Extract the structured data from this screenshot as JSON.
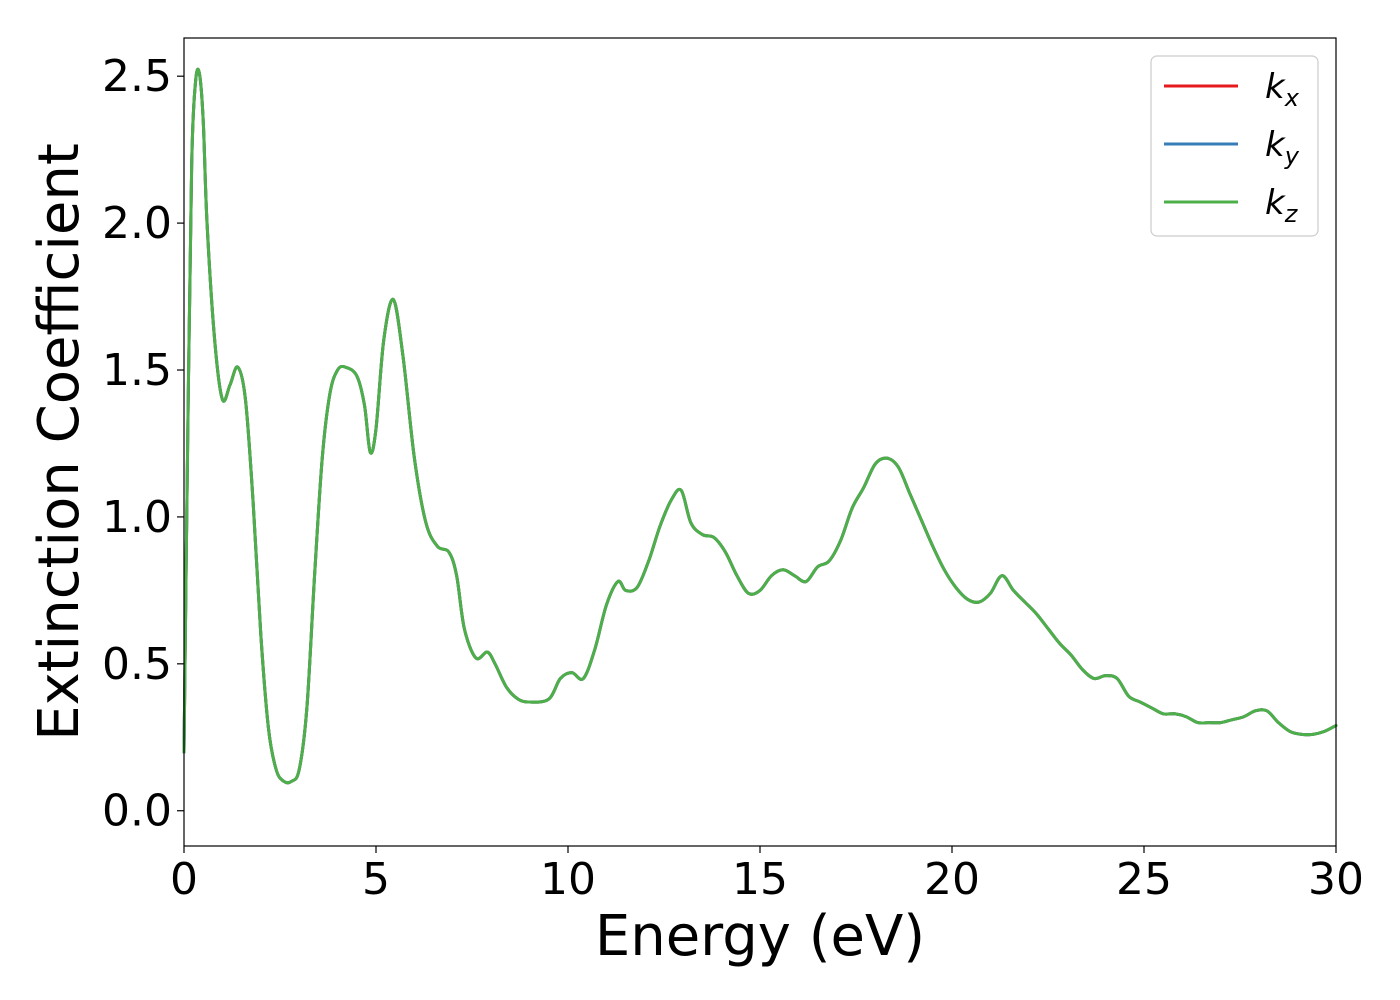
{
  "chart_data": {
    "type": "line",
    "title": "",
    "xlabel": "Energy (eV)",
    "ylabel": "Extinction Coefficient",
    "xlim": [
      0,
      30
    ],
    "ylim": [
      -0.12,
      2.63
    ],
    "xticks": [
      0,
      5,
      10,
      15,
      20,
      25,
      30
    ],
    "xtick_labels": [
      "0",
      "5",
      "10",
      "15",
      "20",
      "25",
      "30"
    ],
    "yticks": [
      0.0,
      0.5,
      1.0,
      1.5,
      2.0,
      2.5
    ],
    "ytick_labels": [
      "0.0",
      "0.5",
      "1.0",
      "1.5",
      "2.0",
      "2.5"
    ],
    "grid": false,
    "legend_position": "top-right",
    "series": [
      {
        "name": "k_x",
        "legend_base": "k",
        "legend_sub": "x",
        "color": "#e41a1c",
        "x": [
          0,
          0.1,
          0.2,
          0.3,
          0.4,
          0.5,
          0.6,
          0.8,
          1.0,
          1.2,
          1.4,
          1.6,
          1.8,
          2.0,
          2.2,
          2.4,
          2.6,
          2.8,
          3.0,
          3.2,
          3.4,
          3.6,
          3.8,
          4.0,
          4.2,
          4.5,
          4.7,
          4.85,
          5.0,
          5.2,
          5.45,
          5.7,
          6.0,
          6.3,
          6.6,
          6.9,
          7.1,
          7.3,
          7.6,
          7.9,
          8.1,
          8.4,
          8.7,
          9.0,
          9.5,
          9.8,
          10.1,
          10.4,
          10.7,
          11.0,
          11.3,
          11.5,
          11.8,
          12.1,
          12.4,
          12.7,
          12.95,
          13.2,
          13.5,
          13.8,
          14.1,
          14.4,
          14.7,
          15.0,
          15.3,
          15.6,
          15.9,
          16.2,
          16.5,
          16.8,
          17.1,
          17.4,
          17.7,
          18.0,
          18.3,
          18.6,
          18.9,
          19.2,
          19.5,
          19.8,
          20.1,
          20.4,
          20.7,
          21.0,
          21.3,
          21.6,
          21.9,
          22.2,
          22.5,
          22.8,
          23.1,
          23.4,
          23.7,
          24.0,
          24.3,
          24.6,
          24.9,
          25.2,
          25.5,
          25.8,
          26.1,
          26.4,
          26.7,
          27.0,
          27.3,
          27.6,
          27.9,
          28.2,
          28.5,
          28.8,
          29.1,
          29.4,
          29.7,
          30.0
        ],
        "y": [
          0.2,
          1.3,
          2.2,
          2.48,
          2.51,
          2.35,
          2.0,
          1.6,
          1.4,
          1.45,
          1.51,
          1.4,
          1.05,
          0.6,
          0.28,
          0.14,
          0.1,
          0.1,
          0.14,
          0.35,
          0.8,
          1.2,
          1.42,
          1.5,
          1.51,
          1.48,
          1.38,
          1.22,
          1.3,
          1.6,
          1.74,
          1.55,
          1.2,
          0.98,
          0.9,
          0.88,
          0.8,
          0.62,
          0.52,
          0.54,
          0.5,
          0.42,
          0.38,
          0.37,
          0.38,
          0.45,
          0.47,
          0.45,
          0.55,
          0.7,
          0.78,
          0.75,
          0.76,
          0.85,
          0.97,
          1.06,
          1.09,
          0.98,
          0.94,
          0.93,
          0.88,
          0.8,
          0.74,
          0.75,
          0.8,
          0.82,
          0.8,
          0.78,
          0.83,
          0.85,
          0.92,
          1.03,
          1.1,
          1.18,
          1.2,
          1.17,
          1.08,
          0.99,
          0.9,
          0.82,
          0.76,
          0.72,
          0.71,
          0.74,
          0.8,
          0.75,
          0.71,
          0.67,
          0.62,
          0.57,
          0.53,
          0.48,
          0.45,
          0.46,
          0.45,
          0.39,
          0.37,
          0.35,
          0.33,
          0.33,
          0.32,
          0.3,
          0.3,
          0.3,
          0.31,
          0.32,
          0.34,
          0.34,
          0.3,
          0.27,
          0.26,
          0.26,
          0.27,
          0.29
        ]
      },
      {
        "name": "k_y",
        "legend_base": "k",
        "legend_sub": "y",
        "color": "#377eb8",
        "x": [
          0,
          0.1,
          0.2,
          0.3,
          0.4,
          0.5,
          0.6,
          0.8,
          1.0,
          1.2,
          1.4,
          1.6,
          1.8,
          2.0,
          2.2,
          2.4,
          2.6,
          2.8,
          3.0,
          3.2,
          3.4,
          3.6,
          3.8,
          4.0,
          4.2,
          4.5,
          4.7,
          4.85,
          5.0,
          5.2,
          5.45,
          5.7,
          6.0,
          6.3,
          6.6,
          6.9,
          7.1,
          7.3,
          7.6,
          7.9,
          8.1,
          8.4,
          8.7,
          9.0,
          9.5,
          9.8,
          10.1,
          10.4,
          10.7,
          11.0,
          11.3,
          11.5,
          11.8,
          12.1,
          12.4,
          12.7,
          12.95,
          13.2,
          13.5,
          13.8,
          14.1,
          14.4,
          14.7,
          15.0,
          15.3,
          15.6,
          15.9,
          16.2,
          16.5,
          16.8,
          17.1,
          17.4,
          17.7,
          18.0,
          18.3,
          18.6,
          18.9,
          19.2,
          19.5,
          19.8,
          20.1,
          20.4,
          20.7,
          21.0,
          21.3,
          21.6,
          21.9,
          22.2,
          22.5,
          22.8,
          23.1,
          23.4,
          23.7,
          24.0,
          24.3,
          24.6,
          24.9,
          25.2,
          25.5,
          25.8,
          26.1,
          26.4,
          26.7,
          27.0,
          27.3,
          27.6,
          27.9,
          28.2,
          28.5,
          28.8,
          29.1,
          29.4,
          29.7,
          30.0
        ],
        "y": [
          0.2,
          1.3,
          2.2,
          2.48,
          2.51,
          2.35,
          2.0,
          1.6,
          1.4,
          1.45,
          1.51,
          1.4,
          1.05,
          0.6,
          0.28,
          0.14,
          0.1,
          0.1,
          0.14,
          0.35,
          0.8,
          1.2,
          1.42,
          1.5,
          1.51,
          1.48,
          1.38,
          1.22,
          1.3,
          1.6,
          1.74,
          1.55,
          1.2,
          0.98,
          0.9,
          0.88,
          0.8,
          0.62,
          0.52,
          0.54,
          0.5,
          0.42,
          0.38,
          0.37,
          0.38,
          0.45,
          0.47,
          0.45,
          0.55,
          0.7,
          0.78,
          0.75,
          0.76,
          0.85,
          0.97,
          1.06,
          1.09,
          0.98,
          0.94,
          0.93,
          0.88,
          0.8,
          0.74,
          0.75,
          0.8,
          0.82,
          0.8,
          0.78,
          0.83,
          0.85,
          0.92,
          1.03,
          1.1,
          1.18,
          1.2,
          1.17,
          1.08,
          0.99,
          0.9,
          0.82,
          0.76,
          0.72,
          0.71,
          0.74,
          0.8,
          0.75,
          0.71,
          0.67,
          0.62,
          0.57,
          0.53,
          0.48,
          0.45,
          0.46,
          0.45,
          0.39,
          0.37,
          0.35,
          0.33,
          0.33,
          0.32,
          0.3,
          0.3,
          0.3,
          0.31,
          0.32,
          0.34,
          0.34,
          0.3,
          0.27,
          0.26,
          0.26,
          0.27,
          0.29
        ]
      },
      {
        "name": "k_z",
        "legend_base": "k",
        "legend_sub": "z",
        "color": "#4daf4a",
        "x": [
          0,
          0.1,
          0.2,
          0.3,
          0.4,
          0.5,
          0.6,
          0.8,
          1.0,
          1.2,
          1.4,
          1.6,
          1.8,
          2.0,
          2.2,
          2.4,
          2.6,
          2.8,
          3.0,
          3.2,
          3.4,
          3.6,
          3.8,
          4.0,
          4.2,
          4.5,
          4.7,
          4.85,
          5.0,
          5.2,
          5.45,
          5.7,
          6.0,
          6.3,
          6.6,
          6.9,
          7.1,
          7.3,
          7.6,
          7.9,
          8.1,
          8.4,
          8.7,
          9.0,
          9.5,
          9.8,
          10.1,
          10.4,
          10.7,
          11.0,
          11.3,
          11.5,
          11.8,
          12.1,
          12.4,
          12.7,
          12.95,
          13.2,
          13.5,
          13.8,
          14.1,
          14.4,
          14.7,
          15.0,
          15.3,
          15.6,
          15.9,
          16.2,
          16.5,
          16.8,
          17.1,
          17.4,
          17.7,
          18.0,
          18.3,
          18.6,
          18.9,
          19.2,
          19.5,
          19.8,
          20.1,
          20.4,
          20.7,
          21.0,
          21.3,
          21.6,
          21.9,
          22.2,
          22.5,
          22.8,
          23.1,
          23.4,
          23.7,
          24.0,
          24.3,
          24.6,
          24.9,
          25.2,
          25.5,
          25.8,
          26.1,
          26.4,
          26.7,
          27.0,
          27.3,
          27.6,
          27.9,
          28.2,
          28.5,
          28.8,
          29.1,
          29.4,
          29.7,
          30.0
        ],
        "y": [
          0.2,
          1.3,
          2.2,
          2.48,
          2.51,
          2.35,
          2.0,
          1.6,
          1.4,
          1.45,
          1.51,
          1.4,
          1.05,
          0.6,
          0.28,
          0.14,
          0.1,
          0.1,
          0.14,
          0.35,
          0.8,
          1.2,
          1.42,
          1.5,
          1.51,
          1.48,
          1.38,
          1.22,
          1.3,
          1.6,
          1.74,
          1.55,
          1.2,
          0.98,
          0.9,
          0.88,
          0.8,
          0.62,
          0.52,
          0.54,
          0.5,
          0.42,
          0.38,
          0.37,
          0.38,
          0.45,
          0.47,
          0.45,
          0.55,
          0.7,
          0.78,
          0.75,
          0.76,
          0.85,
          0.97,
          1.06,
          1.09,
          0.98,
          0.94,
          0.93,
          0.88,
          0.8,
          0.74,
          0.75,
          0.8,
          0.82,
          0.8,
          0.78,
          0.83,
          0.85,
          0.92,
          1.03,
          1.1,
          1.18,
          1.2,
          1.17,
          1.08,
          0.99,
          0.9,
          0.82,
          0.76,
          0.72,
          0.71,
          0.74,
          0.8,
          0.75,
          0.71,
          0.67,
          0.62,
          0.57,
          0.53,
          0.48,
          0.45,
          0.46,
          0.45,
          0.39,
          0.37,
          0.35,
          0.33,
          0.33,
          0.32,
          0.3,
          0.3,
          0.3,
          0.31,
          0.32,
          0.34,
          0.34,
          0.3,
          0.27,
          0.26,
          0.26,
          0.27,
          0.29
        ]
      }
    ]
  }
}
